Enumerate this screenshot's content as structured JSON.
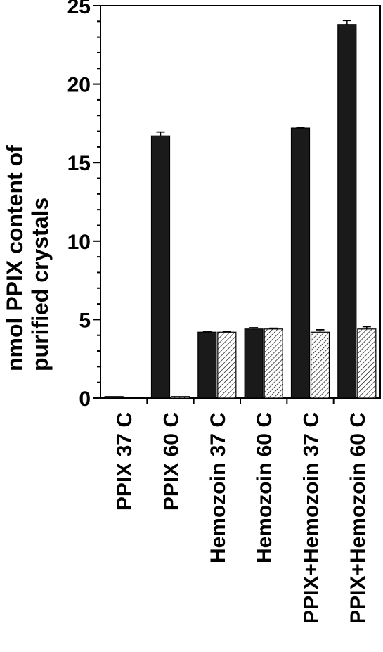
{
  "chart_data": {
    "type": "bar",
    "ylabel": [
      "nmol PPIX content of",
      "purified crystals"
    ],
    "ylim": [
      0,
      25
    ],
    "yticks": [
      "0",
      "5",
      "10",
      "15",
      "20",
      "25"
    ],
    "categories": [
      "PPIX 37 C",
      "PPIX 60 C",
      "Hemozoin 37 C",
      "Hemozoin 60 C",
      "PPIX+Hemozoin 37 C",
      "PPIX+Hemozoin 60 C"
    ],
    "series": [
      {
        "fill": "solid",
        "color": "#1a1a1a",
        "values": [
          0.1,
          16.7,
          4.2,
          4.4,
          17.2,
          23.8
        ],
        "errors": [
          0.0,
          0.25,
          0.05,
          0.08,
          0.05,
          0.25
        ]
      },
      {
        "fill": "hatched",
        "color": "#ffffff",
        "values": [
          0.0,
          0.1,
          4.2,
          4.4,
          4.2,
          4.4
        ],
        "errors": [
          0.0,
          0.0,
          0.05,
          0.05,
          0.15,
          0.15
        ]
      }
    ],
    "legend": "none",
    "grid": false
  }
}
